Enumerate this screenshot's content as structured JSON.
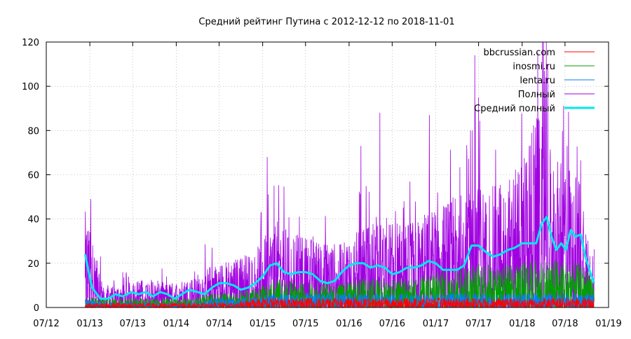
{
  "chart_data": {
    "type": "line",
    "title": "Средний рейтинг Путина с 2012-12-12  по 2018-11-01",
    "xlabel": "",
    "ylabel": "",
    "x_range_months": [
      "07/12",
      "01/19"
    ],
    "xlim": [
      "2012-07-01",
      "2019-01-01"
    ],
    "ylim": [
      0,
      120
    ],
    "x_ticks": [
      "07/12",
      "01/13",
      "07/13",
      "01/14",
      "07/14",
      "01/15",
      "07/15",
      "01/16",
      "07/16",
      "01/17",
      "07/17",
      "01/18",
      "07/18",
      "01/19"
    ],
    "y_ticks": [
      "0",
      "20",
      "40",
      "60",
      "80",
      "100",
      "120"
    ],
    "grid": true,
    "legend_position": "top-right",
    "series": [
      {
        "name": "bbcrussian.com",
        "color": "#ff0000",
        "style": "noisy",
        "x": [
          "2012-12-12",
          "2013-03-01",
          "2013-06-01",
          "2013-09-01",
          "2013-12-01",
          "2014-03-01",
          "2014-06-01",
          "2014-09-01",
          "2014-12-01",
          "2015-03-01",
          "2015-06-01",
          "2015-09-01",
          "2015-12-01",
          "2016-03-01",
          "2016-06-01",
          "2016-09-01",
          "2016-12-01",
          "2017-03-01",
          "2017-06-01",
          "2017-09-01",
          "2017-12-01",
          "2018-03-01",
          "2018-06-01",
          "2018-09-01",
          "2018-11-01"
        ],
        "y": [
          1,
          1,
          1,
          1,
          1,
          1,
          1,
          1,
          2,
          2,
          2,
          2,
          2,
          2,
          2,
          2,
          2,
          2,
          2,
          2,
          2,
          2,
          2,
          2,
          2
        ]
      },
      {
        "name": "inosmi.ru",
        "color": "#00a000",
        "style": "noisy",
        "x": [
          "2012-12-12",
          "2013-03-01",
          "2013-06-01",
          "2013-09-01",
          "2013-12-01",
          "2014-03-01",
          "2014-06-01",
          "2014-09-01",
          "2014-12-01",
          "2015-03-01",
          "2015-06-01",
          "2015-09-01",
          "2015-12-01",
          "2016-03-01",
          "2016-06-01",
          "2016-09-01",
          "2016-12-01",
          "2017-03-01",
          "2017-06-01",
          "2017-09-01",
          "2017-12-01",
          "2018-03-01",
          "2018-06-01",
          "2018-09-01",
          "2018-11-01"
        ],
        "y": [
          2,
          2,
          2,
          2,
          2,
          2,
          3,
          3,
          4,
          6,
          5,
          5,
          5,
          6,
          6,
          6,
          7,
          8,
          9,
          9,
          9,
          10,
          10,
          9,
          7
        ]
      },
      {
        "name": "lenta.ru",
        "color": "#0080ff",
        "style": "noisy",
        "x": [
          "2012-12-12",
          "2013-03-01",
          "2013-06-01",
          "2013-09-01",
          "2013-12-01",
          "2014-03-01",
          "2014-06-01",
          "2014-09-01",
          "2014-12-01",
          "2015-03-01",
          "2015-06-01",
          "2015-09-01",
          "2015-12-01",
          "2016-03-01",
          "2016-06-01",
          "2016-09-01",
          "2016-12-01",
          "2017-03-01",
          "2017-06-01",
          "2017-09-01",
          "2017-12-01",
          "2018-03-01",
          "2018-06-01",
          "2018-09-01",
          "2018-11-01"
        ],
        "y": [
          2,
          1,
          1,
          1,
          1,
          1,
          2,
          2,
          2,
          3,
          3,
          3,
          3,
          3,
          3,
          3,
          3,
          3,
          3,
          3,
          3,
          3,
          3,
          3,
          3
        ]
      },
      {
        "name": "Полный",
        "color": "#a000e0",
        "style": "noisy",
        "x": [
          "2012-12-12",
          "2013-03-01",
          "2013-06-01",
          "2013-09-01",
          "2013-12-01",
          "2014-03-01",
          "2014-06-01",
          "2014-09-01",
          "2014-12-01",
          "2015-03-01",
          "2015-06-01",
          "2015-09-01",
          "2015-12-01",
          "2016-03-01",
          "2016-06-01",
          "2016-09-01",
          "2016-12-01",
          "2017-03-01",
          "2017-06-01",
          "2017-09-01",
          "2017-12-01",
          "2018-03-01",
          "2018-06-01",
          "2018-09-01",
          "2018-11-01"
        ],
        "y": [
          20,
          4,
          5,
          6,
          5,
          6,
          9,
          10,
          12,
          18,
          15,
          14,
          13,
          17,
          18,
          17,
          20,
          22,
          26,
          25,
          28,
          40,
          30,
          28,
          10
        ],
        "peaks": [
          [
            "2013-01-05",
            49
          ],
          [
            "2015-01-20",
            68
          ],
          [
            "2016-02-20",
            73
          ],
          [
            "2016-05-10",
            88
          ],
          [
            "2016-12-05",
            87
          ],
          [
            "2017-06-05",
            80
          ],
          [
            "2017-06-15",
            114
          ],
          [
            "2017-07-01",
            95
          ],
          [
            "2018-04-05",
            107
          ],
          [
            "2018-04-10",
            104
          ],
          [
            "2018-07-10",
            73
          ]
        ]
      },
      {
        "name": "Средний полный",
        "color": "#00e8f0",
        "style": "smooth",
        "x": [
          "2012-12-12",
          "2013-01-10",
          "2013-02-15",
          "2013-03-20",
          "2013-04-20",
          "2013-05-20",
          "2013-06-25",
          "2013-07-25",
          "2013-08-25",
          "2013-09-25",
          "2013-10-25",
          "2013-11-25",
          "2013-12-25",
          "2014-01-25",
          "2014-02-25",
          "2014-04-01",
          "2014-05-01",
          "2014-06-01",
          "2014-07-01",
          "2014-08-01",
          "2014-09-01",
          "2014-10-01",
          "2014-11-01",
          "2014-12-01",
          "2015-01-01",
          "2015-02-01",
          "2015-03-01",
          "2015-04-01",
          "2015-05-01",
          "2015-06-01",
          "2015-07-01",
          "2015-08-01",
          "2015-09-01",
          "2015-10-01",
          "2015-11-01",
          "2015-12-01",
          "2016-01-01",
          "2016-02-01",
          "2016-03-01",
          "2016-04-01",
          "2016-05-01",
          "2016-06-01",
          "2016-07-01",
          "2016-08-01",
          "2016-09-01",
          "2016-10-01",
          "2016-11-01",
          "2016-12-01",
          "2017-01-01",
          "2017-02-01",
          "2017-03-01",
          "2017-04-01",
          "2017-05-01",
          "2017-06-01",
          "2017-07-01",
          "2017-08-01",
          "2017-09-01",
          "2017-10-01",
          "2017-11-01",
          "2017-12-01",
          "2018-01-01",
          "2018-02-01",
          "2018-03-01",
          "2018-03-25",
          "2018-04-15",
          "2018-05-05",
          "2018-05-25",
          "2018-06-15",
          "2018-07-05",
          "2018-07-25",
          "2018-08-15",
          "2018-09-05",
          "2018-09-25",
          "2018-10-15",
          "2018-11-01"
        ],
        "y": [
          24,
          9,
          4,
          4,
          6,
          5,
          7,
          6,
          7,
          5,
          7,
          6,
          4,
          6,
          8,
          7,
          6,
          9,
          11,
          11,
          10,
          8,
          9,
          11,
          14,
          19,
          20,
          16,
          15,
          16,
          16,
          15,
          12,
          11,
          12,
          16,
          19,
          20,
          20,
          18,
          19,
          18,
          15,
          16,
          18,
          18,
          19,
          21,
          20,
          17,
          17,
          17,
          19,
          28,
          28,
          25,
          23,
          24,
          26,
          27,
          29,
          29,
          29,
          38,
          41,
          32,
          26,
          29,
          26,
          35,
          32,
          33,
          23,
          16,
          11
        ]
      }
    ]
  }
}
